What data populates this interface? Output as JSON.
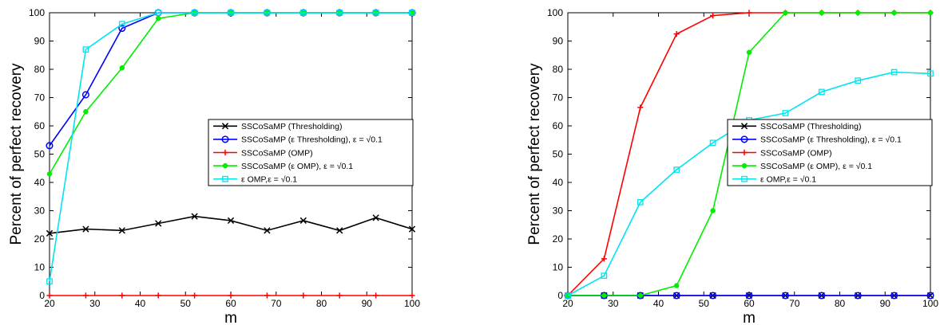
{
  "chart_data": [
    {
      "type": "line",
      "xlabel": "m",
      "ylabel": "Percent of perfect recovery",
      "xlim": [
        20,
        100
      ],
      "ylim": [
        0,
        100
      ],
      "xticks": [
        20,
        30,
        40,
        50,
        60,
        70,
        80,
        90,
        100
      ],
      "yticks": [
        0,
        10,
        20,
        30,
        40,
        50,
        60,
        70,
        80,
        90,
        100
      ],
      "grid": false,
      "legend_position": "center-right",
      "x": [
        20,
        28,
        36,
        44,
        52,
        60,
        68,
        76,
        84,
        92,
        100
      ],
      "series": [
        {
          "name": "SSCoSaMP (Thresholding)",
          "color": "#000000",
          "marker": "x",
          "values": [
            22,
            23.5,
            23,
            25.5,
            28,
            26.5,
            23,
            26.5,
            23,
            27.5,
            23.5
          ]
        },
        {
          "name": "SSCoSaMP (ε Thresholding), ε = √0.1",
          "color": "#0000ff",
          "marker": "o",
          "values": [
            53,
            71,
            94.5,
            100,
            100,
            100,
            100,
            100,
            100,
            100,
            100
          ]
        },
        {
          "name": "SSCoSaMP (OMP)",
          "color": "#ff0000",
          "marker": "+",
          "values": [
            0,
            0,
            0,
            0,
            0,
            0,
            0,
            0,
            0,
            0,
            0
          ]
        },
        {
          "name": "SSCoSaMP (ε OMP), ε = √0.1",
          "color": "#00ee00",
          "marker": "dot",
          "values": [
            43,
            65,
            80.5,
            98,
            100,
            100,
            100,
            100,
            100,
            100,
            100
          ]
        },
        {
          "name": "ε OMP,ε = √0.1",
          "color": "#00e5ee",
          "marker": "s",
          "values": [
            5,
            87,
            96,
            100,
            100,
            100,
            100,
            100,
            100,
            100,
            100
          ]
        }
      ]
    },
    {
      "type": "line",
      "xlabel": "m",
      "ylabel": "Percent of perfect recovery",
      "xlim": [
        20,
        100
      ],
      "ylim": [
        0,
        100
      ],
      "xticks": [
        20,
        30,
        40,
        50,
        60,
        70,
        80,
        90,
        100
      ],
      "yticks": [
        0,
        10,
        20,
        30,
        40,
        50,
        60,
        70,
        80,
        90,
        100
      ],
      "grid": false,
      "legend_position": "center-right",
      "x": [
        20,
        28,
        36,
        44,
        52,
        60,
        68,
        76,
        84,
        92,
        100
      ],
      "series": [
        {
          "name": "SSCoSaMP (Thresholding)",
          "color": "#000000",
          "marker": "x",
          "values": [
            0,
            0,
            0,
            0,
            0,
            0,
            0,
            0,
            0,
            0,
            0
          ]
        },
        {
          "name": "SSCoSaMP (ε Thresholding), ε = √0.1",
          "color": "#0000ff",
          "marker": "o",
          "values": [
            0,
            0,
            0,
            0,
            0,
            0,
            0,
            0,
            0,
            0,
            0
          ]
        },
        {
          "name": "SSCoSaMP (OMP)",
          "color": "#ff0000",
          "marker": "+",
          "values": [
            0,
            13,
            66.5,
            92.5,
            99,
            100,
            100,
            100,
            100,
            100,
            100
          ]
        },
        {
          "name": "SSCoSaMP (ε OMP), ε = √0.1",
          "color": "#00ee00",
          "marker": "dot",
          "values": [
            0,
            0,
            0,
            3.5,
            30,
            86,
            100,
            100,
            100,
            100,
            100
          ]
        },
        {
          "name": "ε OMP,ε = √0.1",
          "color": "#00e5ee",
          "marker": "s",
          "values": [
            0,
            7,
            33,
            44.5,
            54,
            62,
            64.5,
            72,
            76,
            79,
            78.5
          ]
        }
      ]
    }
  ]
}
